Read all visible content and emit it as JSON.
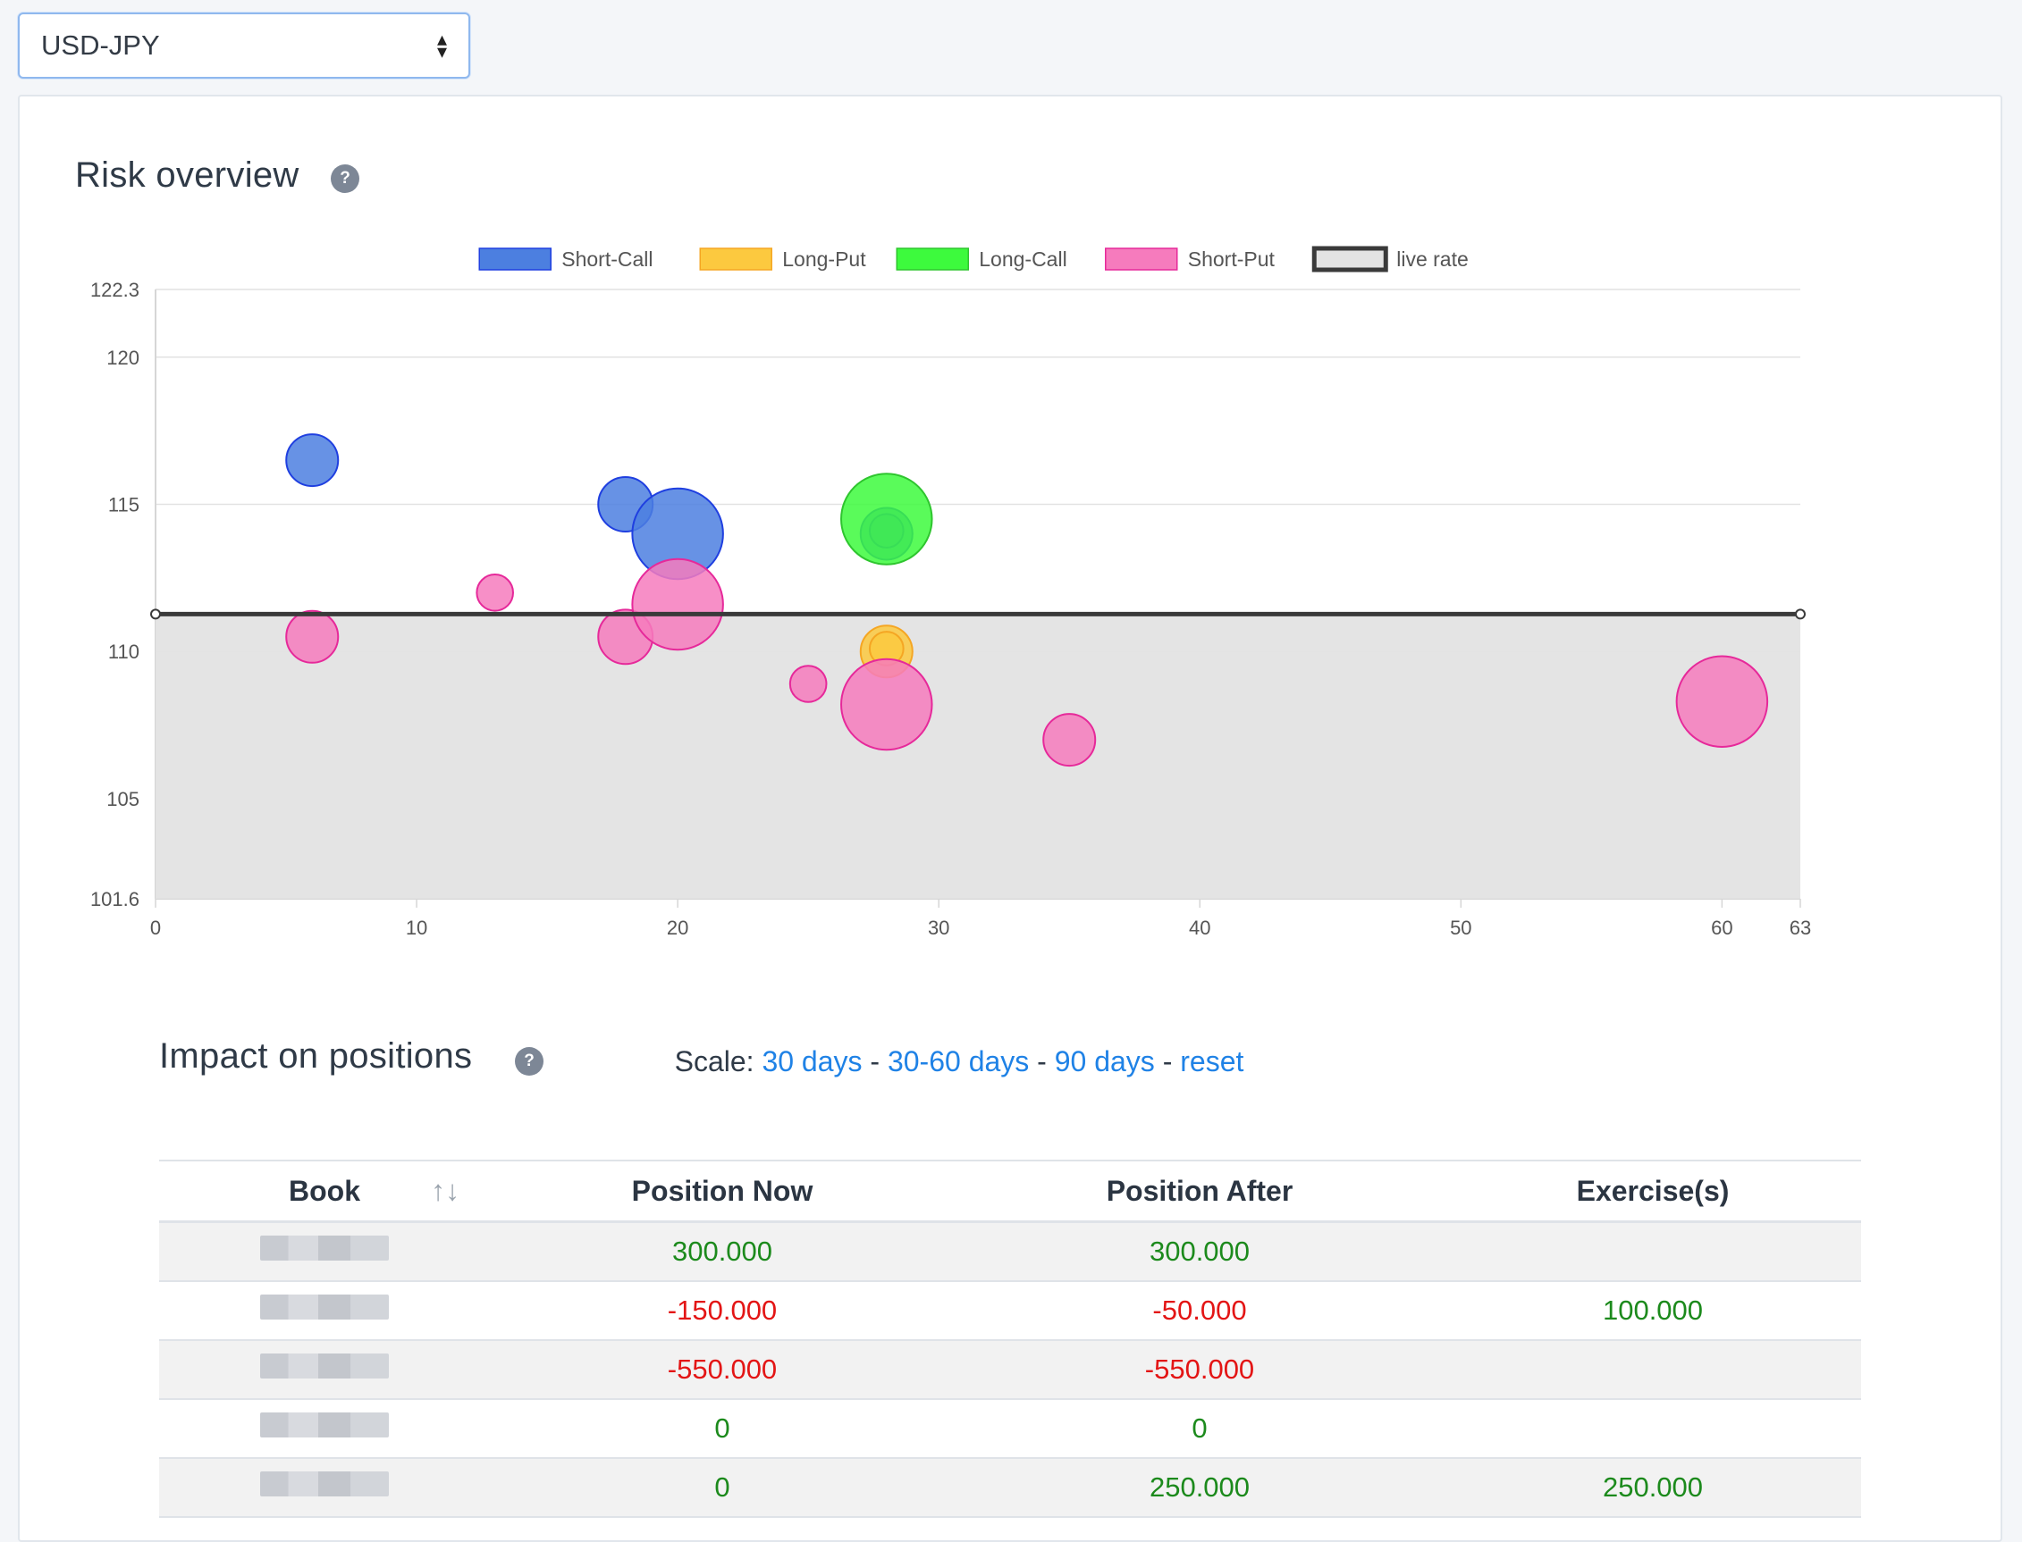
{
  "currency_pair_select": {
    "value": "USD-JPY"
  },
  "risk_overview": {
    "title": "Risk overview",
    "help": "?"
  },
  "chart_data": {
    "type": "bubble",
    "title": "",
    "xlabel": "",
    "ylabel": "",
    "xlim": [
      0,
      63
    ],
    "ylim": [
      101.6,
      122.3
    ],
    "x_ticks": [
      0,
      10,
      20,
      30,
      40,
      50,
      60,
      63
    ],
    "y_ticks": [
      122.3,
      120,
      115,
      110,
      105,
      101.6
    ],
    "grid": true,
    "legend_position": "top",
    "series": [
      {
        "name": "Short-Call",
        "color": "#4c7fe0",
        "border": "#1f3fe0",
        "points": [
          {
            "x": 6,
            "y": 116.5,
            "r": 20
          },
          {
            "x": 18,
            "y": 115,
            "r": 21
          },
          {
            "x": 20,
            "y": 114,
            "r": 35
          },
          {
            "x": 28,
            "y": 114,
            "r": 20
          },
          {
            "x": 28,
            "y": 114.1,
            "r": 13
          }
        ]
      },
      {
        "name": "Long-Put",
        "color": "#fcc93f",
        "border": "#f5a623",
        "points": [
          {
            "x": 28,
            "y": 110,
            "r": 20
          },
          {
            "x": 28,
            "y": 110.1,
            "r": 13
          }
        ]
      },
      {
        "name": "Long-Call",
        "color": "#3dfa3d",
        "border": "#2ec52e",
        "points": [
          {
            "x": 28,
            "y": 114.5,
            "r": 35
          }
        ]
      },
      {
        "name": "Short-Put",
        "color": "#f67bbd",
        "border": "#e6299a",
        "points": [
          {
            "x": 6,
            "y": 110.5,
            "r": 20
          },
          {
            "x": 13,
            "y": 112,
            "r": 14
          },
          {
            "x": 18,
            "y": 110.5,
            "r": 21
          },
          {
            "x": 20,
            "y": 111.6,
            "r": 35
          },
          {
            "x": 25,
            "y": 108.9,
            "r": 14
          },
          {
            "x": 28,
            "y": 108.2,
            "r": 35
          },
          {
            "x": 35,
            "y": 107,
            "r": 20
          },
          {
            "x": 60,
            "y": 108.3,
            "r": 35
          }
        ]
      },
      {
        "name": "live rate",
        "color": "#3a3a3a",
        "fill": "#e3e3e3",
        "type": "line",
        "points": [
          {
            "x": 0,
            "y": 111.27
          },
          {
            "x": 63,
            "y": 111.27
          }
        ]
      }
    ]
  },
  "scale": {
    "label": "Scale:",
    "sep": "-",
    "links": [
      "30 days",
      "30-60 days",
      "90 days",
      "reset"
    ]
  },
  "impact": {
    "title": "Impact on positions",
    "help": "?",
    "columns": [
      "Book",
      "Position Now",
      "Position After",
      "Exercise(s)"
    ],
    "sort_icon": "↑↓",
    "rows": [
      {
        "now": "300.000",
        "after": "300.000",
        "exercise": ""
      },
      {
        "now": "-150.000",
        "after": "-50.000",
        "exercise": "100.000"
      },
      {
        "now": "-550.000",
        "after": "-550.000",
        "exercise": ""
      },
      {
        "now": "0",
        "after": "0",
        "exercise": ""
      },
      {
        "now": "0",
        "after": "250.000",
        "exercise": "250.000"
      }
    ]
  }
}
